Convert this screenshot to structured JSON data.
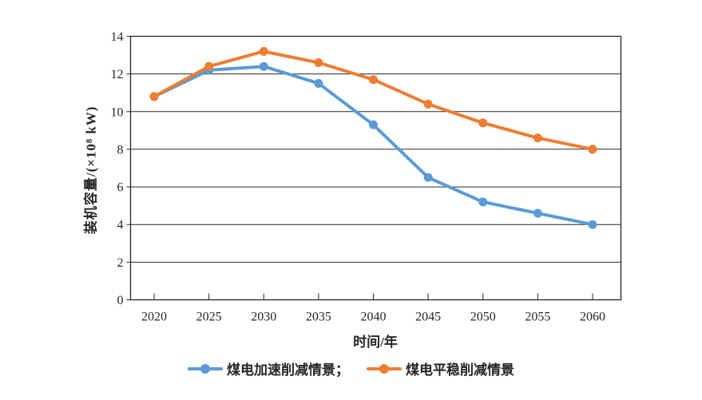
{
  "chart_data": {
    "type": "line",
    "title": "",
    "xlabel": "时间/年",
    "ylabel": "装机容量/(×10⁸ kW)",
    "categories": [
      "2020",
      "2025",
      "2030",
      "2035",
      "2040",
      "2045",
      "2050",
      "2055",
      "2060"
    ],
    "series": [
      {
        "name": "煤电加速削减情景",
        "legend_label": "煤电加速削减情景；",
        "color": "#5B9BD5",
        "values": [
          10.8,
          12.2,
          12.4,
          11.5,
          9.3,
          6.5,
          5.2,
          4.6,
          4.0
        ]
      },
      {
        "name": "煤电平稳削减情景",
        "legend_label": "煤电平稳削减情景",
        "color": "#ED7D31",
        "values": [
          10.8,
          12.4,
          13.2,
          12.6,
          11.7,
          10.4,
          9.4,
          8.6,
          8.0
        ]
      }
    ],
    "ylim": [
      0,
      14
    ],
    "ytick_step": 2,
    "grid": "horizontal",
    "legend_position": "bottom",
    "axis_color": "#262626",
    "background_color": "#ffffff"
  }
}
